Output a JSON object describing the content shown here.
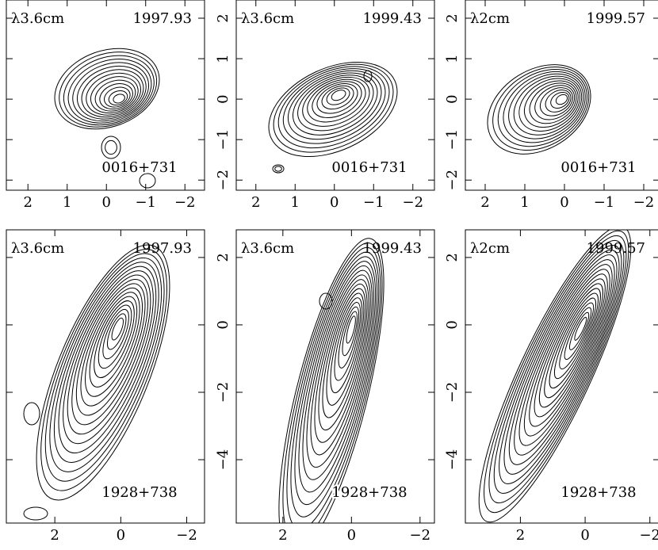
{
  "chart_data": [
    {
      "type": "contour",
      "band": "λ3.6cm",
      "epoch": "1997.93",
      "source": "0016+731",
      "xlim": [
        2.55,
        -2.5
      ],
      "ylim": [
        -2.25,
        2.45
      ],
      "xticks": [
        2,
        1,
        0,
        {
          "value": -1,
          "label": "−1"
        },
        {
          "value": -2,
          "label": "−2"
        }
      ],
      "yticks": [
        2,
        1,
        0,
        -1,
        -2
      ],
      "ytick_labels": false
    },
    {
      "type": "contour",
      "band": "λ3.6cm",
      "epoch": "1999.43",
      "source": "0016+731",
      "xlim": [
        2.5,
        -2.55
      ],
      "ylim": [
        -2.25,
        2.45
      ],
      "xticks": [
        2,
        1,
        0,
        {
          "value": -1,
          "label": "−1"
        },
        {
          "value": -2,
          "label": "−2"
        }
      ],
      "yticks": [
        2,
        1,
        0,
        {
          "value": -1,
          "label": "−1"
        },
        {
          "value": -2,
          "label": "−2"
        }
      ],
      "ytick_labels": true
    },
    {
      "type": "contour",
      "band": "λ2cm",
      "epoch": "1999.57",
      "source": "0016+731",
      "xlim": [
        2.5,
        -2.4
      ],
      "ylim": [
        -2.25,
        2.45
      ],
      "xticks": [
        2,
        1,
        0,
        {
          "value": -1,
          "label": "−1"
        },
        {
          "value": -2,
          "label": "−2"
        }
      ],
      "yticks": [
        2,
        1,
        0,
        {
          "value": -1,
          "label": "−1"
        },
        {
          "value": -2,
          "label": "−2"
        }
      ],
      "ytick_labels": true
    },
    {
      "type": "contour",
      "band": "λ3.6cm",
      "epoch": "1997.93",
      "source": "1928+738",
      "xlim": [
        3.47,
        -2.54
      ],
      "ylim": [
        -5.88,
        2.82
      ],
      "xticks": [
        2,
        0,
        {
          "value": -2,
          "label": "−2"
        }
      ],
      "yticks": [
        2,
        0,
        -2,
        -4
      ],
      "ytick_labels": false
    },
    {
      "type": "contour",
      "band": "λ3.6cm",
      "epoch": "1999.43",
      "source": "1928+738",
      "xlim": [
        3.36,
        -2.42
      ],
      "ylim": [
        -5.88,
        2.82
      ],
      "xticks": [
        2,
        0,
        {
          "value": -2,
          "label": "−2"
        }
      ],
      "yticks": [
        2,
        0,
        {
          "value": -2,
          "label": "−2"
        },
        {
          "value": -4,
          "label": "−4"
        }
      ],
      "ytick_labels": true
    },
    {
      "type": "contour",
      "band": "λ2cm",
      "epoch": "1999.57",
      "source": "1928+738",
      "xlim": [
        3.7,
        -2.3
      ],
      "ylim": [
        -5.88,
        2.82
      ],
      "xticks": [
        2,
        0,
        {
          "value": -2,
          "label": "−2"
        }
      ],
      "yticks": [
        2,
        0,
        {
          "value": -2,
          "label": "−2"
        },
        {
          "value": -4,
          "label": "−4"
        }
      ],
      "ytick_labels": true
    }
  ]
}
